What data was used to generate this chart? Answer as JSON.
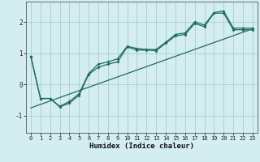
{
  "xlabel": "Humidex (Indice chaleur)",
  "bg_color": "#d4edf0",
  "grid_color": "#aacccc",
  "line_color": "#1e6b5e",
  "xlim": [
    -0.5,
    23.5
  ],
  "ylim": [
    -1.55,
    2.65
  ],
  "yticks": [
    -1,
    0,
    1,
    2
  ],
  "xticks": [
    0,
    1,
    2,
    3,
    4,
    5,
    6,
    7,
    8,
    9,
    10,
    11,
    12,
    13,
    14,
    15,
    16,
    17,
    18,
    19,
    20,
    21,
    22,
    23
  ],
  "line1_x": [
    0,
    1,
    2,
    3,
    4,
    5,
    6,
    7,
    8,
    9,
    10,
    11,
    12,
    13,
    14,
    15,
    16,
    17,
    18,
    19,
    20,
    21,
    22,
    23
  ],
  "line1_y": [
    0.9,
    -0.45,
    -0.45,
    -0.7,
    -0.55,
    -0.3,
    0.35,
    0.65,
    0.72,
    0.82,
    1.22,
    1.15,
    1.12,
    1.12,
    1.35,
    1.6,
    1.65,
    2.0,
    1.9,
    2.3,
    2.35,
    1.8,
    1.8,
    1.8
  ],
  "line2_x": [
    0,
    1,
    2,
    3,
    4,
    5,
    6,
    7,
    8,
    9,
    10,
    11,
    12,
    13,
    14,
    15,
    16,
    17,
    18,
    19,
    20,
    21,
    22,
    23
  ],
  "line2_y": [
    0.9,
    -0.45,
    -0.45,
    -0.72,
    -0.6,
    -0.35,
    0.32,
    0.55,
    0.65,
    0.72,
    1.2,
    1.1,
    1.1,
    1.08,
    1.32,
    1.55,
    1.6,
    1.95,
    1.85,
    2.28,
    2.28,
    1.75,
    1.75,
    1.75
  ],
  "trend_x": [
    0,
    23
  ],
  "trend_y": [
    -0.75,
    1.78
  ]
}
